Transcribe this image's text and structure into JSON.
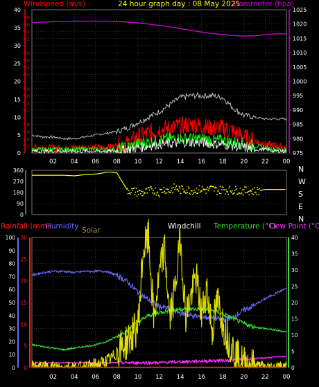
{
  "header": {
    "title": "24 hour graph day : 08 May 2025",
    "left_label": "Windspeed (m/s)",
    "right_label": "Barometer (hpa)"
  },
  "compass_labels": [
    "N",
    "W",
    "S",
    "E",
    "N"
  ],
  "lower_header": {
    "rainfall": "Rainfall (mm)",
    "humidity": "Humidity",
    "solar": "Solar",
    "windchill": "Windchill",
    "temperature": "Temperature (°C)",
    "dewpoint": "Dew Point (°C)"
  },
  "colors": {
    "windspeed_label": "#ff0000",
    "title": "#ffff00",
    "barometer": "#cc00cc",
    "gust": "#bbbbbb",
    "wind_avg": "#ff0000",
    "wind_green": "#00ff00",
    "wind_white": "#ffffff",
    "direction": "#ffff00",
    "rainfall": "#ff2020",
    "humidity": "#6a6aff",
    "solar": "#e0e000",
    "temperature": "#30e030",
    "dewpoint": "#ff30ff",
    "solar_label": "#b09030"
  },
  "chart_data": [
    {
      "type": "line",
      "title": "24 hour graph day : 08 May 2025",
      "xlabel": "",
      "ylabel": "Windspeed (m/s)",
      "y2label": "Barometer (hpa)",
      "x_ticks": [
        "02",
        "04",
        "06",
        "08",
        "10",
        "12",
        "14",
        "16",
        "18",
        "20",
        "22",
        "00"
      ],
      "xlim": [
        0,
        24
      ],
      "ylim": [
        0,
        40
      ],
      "y_ticks": [
        0,
        2,
        4,
        6,
        8,
        10,
        12,
        14,
        16,
        18,
        20,
        22,
        24,
        26,
        28,
        30,
        32,
        34,
        36,
        38,
        40
      ],
      "y_labels_shown": [
        0,
        5,
        10,
        15,
        20,
        25,
        30,
        35,
        40
      ],
      "y2lim": [
        975,
        1025
      ],
      "y2_ticks": [
        975,
        980,
        985,
        990,
        995,
        1000,
        1005,
        1010,
        1015,
        1020,
        1025
      ],
      "series": [
        {
          "name": "Barometer (hpa)",
          "axis": "right",
          "x": [
            0,
            2,
            4,
            6,
            7,
            8,
            9,
            10,
            11,
            12,
            13,
            14,
            15,
            16,
            17,
            18,
            19,
            20,
            21,
            22,
            23,
            24
          ],
          "values": [
            1020.5,
            1020.8,
            1021.0,
            1021.0,
            1021.0,
            1020.9,
            1020.7,
            1020.4,
            1020.0,
            1019.5,
            1019.0,
            1018.4,
            1017.8,
            1017.2,
            1016.7,
            1016.3,
            1016.0,
            1015.8,
            1015.9,
            1016.3,
            1016.6,
            1016.6
          ]
        },
        {
          "name": "Gust",
          "x": [
            0,
            1,
            2,
            3,
            4,
            5,
            6,
            7,
            8,
            9,
            10,
            11,
            12,
            13,
            14,
            15,
            16,
            17,
            18,
            19,
            20,
            21,
            22,
            23,
            24
          ],
          "values": [
            5,
            4.5,
            4.5,
            4,
            4,
            4.5,
            5,
            5.5,
            6,
            7,
            8.5,
            10,
            11.5,
            13.5,
            15.5,
            16,
            16,
            16,
            15.5,
            12.5,
            10.5,
            10,
            9.5,
            9.5,
            9.5
          ]
        },
        {
          "name": "Wind avg",
          "x": [
            0,
            1,
            2,
            3,
            4,
            5,
            6,
            7,
            8,
            9,
            10,
            11,
            12,
            13,
            14,
            15,
            16,
            17,
            18,
            19,
            20,
            21,
            22,
            23,
            24
          ],
          "values": [
            1.5,
            1.5,
            1.5,
            1,
            1.5,
            1.5,
            1.5,
            1.5,
            2,
            2.5,
            4.5,
            5.5,
            6.5,
            7,
            7.5,
            8,
            7.5,
            7,
            7,
            6,
            4.5,
            3.5,
            2.5,
            2,
            1.5
          ]
        },
        {
          "name": "Wind (green)",
          "x": [
            0,
            1,
            2,
            3,
            4,
            5,
            6,
            7,
            8,
            9,
            10,
            11,
            12,
            13,
            14,
            15,
            16,
            17,
            18,
            19,
            20,
            21,
            22,
            23,
            24
          ],
          "values": [
            1,
            1,
            1,
            1,
            1,
            1,
            1,
            1,
            1,
            1.5,
            2.5,
            3,
            3.5,
            4,
            4,
            4,
            4,
            3.5,
            3.5,
            3,
            2.5,
            2,
            1.5,
            1,
            1
          ]
        },
        {
          "name": "Wind (white)",
          "x": [
            0,
            1,
            2,
            3,
            4,
            5,
            6,
            7,
            8,
            9,
            10,
            11,
            12,
            13,
            14,
            15,
            16,
            17,
            18,
            19,
            20,
            21,
            22,
            23,
            24
          ],
          "values": [
            0.5,
            0.5,
            0.5,
            0.5,
            0.5,
            0.5,
            0.5,
            0.5,
            0.5,
            1,
            1.5,
            2,
            2.5,
            2.5,
            3,
            3,
            3,
            2.5,
            2.5,
            2,
            1.5,
            1,
            1,
            0.5,
            0.5
          ]
        }
      ]
    },
    {
      "type": "scatter",
      "ylabel": "Wind direction",
      "ylim": [
        0,
        360
      ],
      "y_ticks": [
        0,
        90,
        180,
        270,
        360
      ],
      "x": [
        0,
        1,
        2,
        3,
        4,
        5,
        6,
        6.5,
        7,
        7.5,
        8,
        9,
        9.5,
        10,
        10.5,
        11,
        11.5,
        12,
        12.5,
        13,
        13.5,
        14,
        14.5,
        15,
        15.5,
        16,
        16.5,
        17,
        17.5,
        18,
        18.5,
        19,
        19.5,
        20,
        20.5,
        21,
        21.5,
        22,
        23,
        24
      ],
      "values": [
        320,
        320,
        320,
        320,
        315,
        325,
        330,
        335,
        345,
        345,
        340,
        200,
        190,
        180,
        175,
        190,
        200,
        180,
        210,
        190,
        220,
        200,
        205,
        195,
        200,
        205,
        200,
        210,
        195,
        205,
        200,
        195,
        200,
        190,
        195,
        190,
        195,
        205,
        205,
        205
      ]
    },
    {
      "type": "line",
      "x_ticks": [
        "02",
        "04",
        "06",
        "08",
        "10",
        "12",
        "14",
        "16",
        "18",
        "20",
        "22",
        "00"
      ],
      "xlim": [
        0,
        24
      ],
      "y_left_outer": {
        "label": "Rainfall (mm)",
        "ylim": [
          0,
          30
        ],
        "ticks": [
          0,
          5,
          10,
          15,
          20,
          25,
          30
        ]
      },
      "y_left_inner": {
        "label": "Humidity",
        "ylim": [
          0,
          100
        ],
        "ticks": [
          0,
          10,
          20,
          30,
          40,
          50,
          60,
          70,
          80,
          90,
          100
        ]
      },
      "y_right": {
        "label": "Temperature (°C)",
        "ylim": [
          0,
          40
        ],
        "ticks": [
          0,
          5,
          10,
          15,
          20,
          25,
          30,
          35,
          40
        ]
      },
      "series": [
        {
          "name": "Humidity",
          "axis": "left_inner",
          "x": [
            0,
            1,
            2,
            3,
            4,
            5,
            6,
            7,
            8,
            9,
            10,
            11,
            12,
            13,
            14,
            15,
            16,
            17,
            18,
            19,
            20,
            21,
            22,
            23,
            24
          ],
          "values": [
            71,
            73,
            74,
            74,
            73,
            74,
            74,
            74,
            71,
            66,
            58,
            52,
            47,
            45,
            42,
            40,
            39,
            38,
            37,
            39,
            44,
            48,
            53,
            57,
            61
          ]
        },
        {
          "name": "Solar",
          "axis": "left_inner",
          "x": [
            0,
            5,
            5.5,
            6,
            6.5,
            7,
            7.5,
            8,
            8.5,
            9,
            9.5,
            10,
            10.5,
            11,
            11.5,
            12,
            12.5,
            13,
            13.5,
            14,
            14.5,
            15,
            15.5,
            16,
            16.5,
            17,
            17.5,
            18,
            18.5,
            19,
            19.5,
            20,
            21,
            22,
            23,
            24
          ],
          "values": [
            0,
            0,
            1,
            2,
            3,
            5,
            7,
            11,
            16,
            20,
            26,
            32,
            90,
            100,
            36,
            70,
            92,
            38,
            60,
            100,
            40,
            55,
            70,
            40,
            62,
            28,
            52,
            35,
            22,
            14,
            6,
            3,
            1,
            0,
            0,
            0
          ]
        },
        {
          "name": "Temperature (°C)",
          "axis": "right",
          "x": [
            0,
            1,
            2,
            3,
            4,
            5,
            6,
            7,
            8,
            9,
            10,
            11,
            12,
            13,
            14,
            15,
            16,
            17,
            18,
            19,
            20,
            21,
            22,
            23,
            24
          ],
          "values": [
            7,
            6.5,
            6,
            5.5,
            6,
            6.5,
            7,
            8,
            9.5,
            11.5,
            14,
            16,
            17,
            17.5,
            18,
            18,
            18,
            17.5,
            16.5,
            15,
            13.5,
            12.5,
            12,
            11.5,
            11
          ]
        },
        {
          "name": "Dew Point (°C)",
          "axis": "right",
          "x": [
            0,
            2,
            4,
            6,
            8,
            10,
            12,
            14,
            16,
            18,
            20,
            22,
            24
          ],
          "values": [
            1.5,
            1.5,
            1.5,
            1.5,
            1.5,
            1.5,
            1.5,
            1.8,
            2,
            2.2,
            2.5,
            3,
            3.5
          ]
        },
        {
          "name": "Rainfall (mm)",
          "axis": "left_outer",
          "x": [
            0,
            24
          ],
          "values": [
            0,
            0
          ]
        }
      ]
    }
  ]
}
